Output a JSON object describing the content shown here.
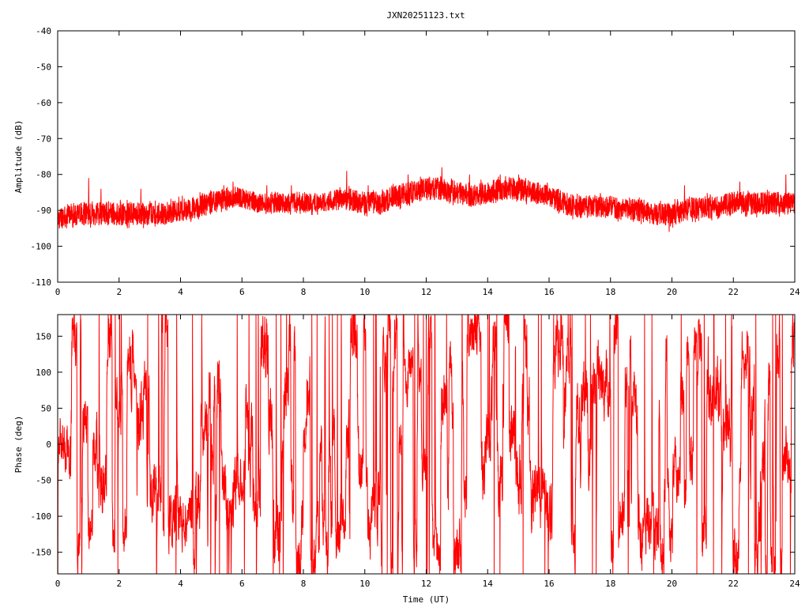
{
  "page_title": "JXN20251123.txt",
  "colors": {
    "series": "#ff0000",
    "axes": "#000000",
    "background": "#ffffff"
  },
  "chart_data": [
    {
      "type": "line",
      "title": "JXN20251123.txt",
      "xlabel": "",
      "ylabel": "Amplitude (dB)",
      "xlim": [
        0,
        24
      ],
      "ylim": [
        -110,
        -40
      ],
      "xticks": [
        0,
        2,
        4,
        6,
        8,
        10,
        12,
        14,
        16,
        18,
        20,
        22,
        24
      ],
      "yticks": [
        -110,
        -100,
        -90,
        -80,
        -70,
        -60,
        -50,
        -40
      ],
      "grid": false,
      "legend": "none",
      "band": {
        "x": [
          0,
          0.5,
          1,
          1.5,
          2,
          2.5,
          3,
          3.5,
          4,
          4.5,
          5,
          5.5,
          5.8,
          6.5,
          7,
          7.5,
          8,
          8.5,
          9,
          9.5,
          10,
          10.5,
          11,
          11.5,
          12,
          12.5,
          13,
          13.5,
          14,
          14.5,
          15,
          15.5,
          16,
          16.5,
          17,
          17.5,
          18,
          18.5,
          19,
          19.5,
          20,
          20.5,
          21,
          21.5,
          22,
          22.5,
          23,
          23.5,
          24
        ],
        "mean": [
          -92,
          -91,
          -91,
          -91,
          -91,
          -91,
          -91,
          -91,
          -90,
          -89,
          -88,
          -87,
          -86,
          -88,
          -88,
          -88,
          -88,
          -88,
          -87,
          -87,
          -88,
          -88,
          -86,
          -85,
          -84,
          -84,
          -85,
          -86,
          -85,
          -84,
          -84,
          -85,
          -86,
          -88,
          -89,
          -89,
          -89,
          -90,
          -90,
          -91,
          -91,
          -90,
          -89,
          -89,
          -88,
          -88,
          -88,
          -88,
          -88
        ],
        "half": [
          4,
          4,
          4,
          4,
          4,
          4,
          4,
          4,
          4,
          4,
          4,
          4,
          3.5,
          3.5,
          3.5,
          3.5,
          3.5,
          3.5,
          3.5,
          4,
          4,
          4,
          4,
          4,
          4,
          4,
          4,
          4,
          4,
          4,
          4,
          4,
          4,
          4,
          4,
          4,
          4,
          4,
          4,
          4,
          4,
          4,
          4,
          4,
          4,
          4,
          4,
          4,
          4
        ],
        "spikes": [
          [
            1.0,
            -81
          ],
          [
            1.4,
            -84
          ],
          [
            2.7,
            -84
          ],
          [
            5.4,
            -83
          ],
          [
            5.7,
            -82
          ],
          [
            6.8,
            -83
          ],
          [
            7.6,
            -83
          ],
          [
            9.4,
            -79
          ],
          [
            10.1,
            -83
          ],
          [
            11.4,
            -80
          ],
          [
            12.5,
            -78
          ],
          [
            13.4,
            -80
          ],
          [
            14.4,
            -80
          ],
          [
            15.0,
            -80
          ],
          [
            19.9,
            -96
          ],
          [
            20.4,
            -83
          ],
          [
            22.2,
            -82
          ],
          [
            23.7,
            -80
          ]
        ]
      }
    },
    {
      "type": "line",
      "title": "",
      "xlabel": "Time (UT)",
      "ylabel": "Phase (deg)",
      "xlim": [
        0,
        24
      ],
      "ylim": [
        -180,
        180
      ],
      "xticks": [
        0,
        2,
        4,
        6,
        8,
        10,
        12,
        14,
        16,
        18,
        20,
        22,
        24
      ],
      "yticks": [
        -150,
        -100,
        -50,
        0,
        50,
        100,
        150
      ],
      "grid": false,
      "legend": "none",
      "noise": {
        "x": [
          0,
          1,
          2,
          2.5,
          3,
          4,
          5,
          6,
          7,
          8,
          9,
          10,
          11,
          12,
          13,
          14,
          15,
          16,
          17,
          18,
          19,
          20,
          21,
          22,
          23,
          24
        ],
        "level": [
          0.6,
          0.8,
          0.7,
          1.0,
          0.8,
          0.7,
          0.8,
          0.7,
          1.0,
          0.9,
          0.7,
          0.8,
          0.7,
          0.6,
          0.9,
          0.8,
          0.9,
          0.8,
          0.9,
          0.8,
          0.8,
          0.7,
          0.8,
          0.8,
          0.9,
          0.7
        ]
      }
    }
  ]
}
